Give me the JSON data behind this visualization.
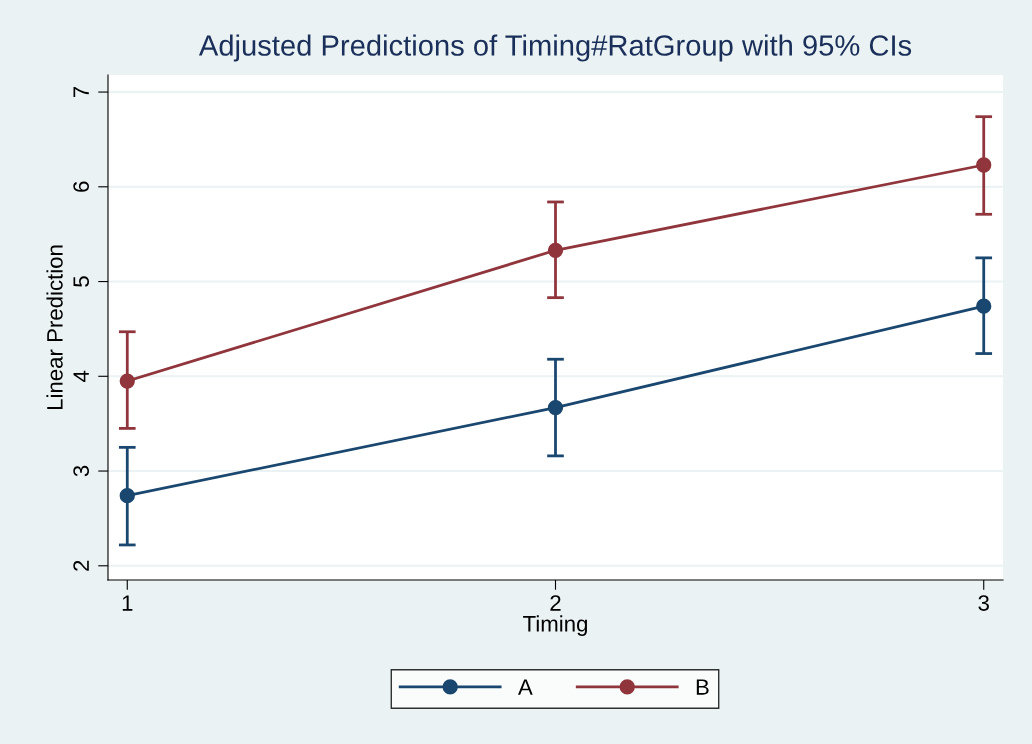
{
  "chart_data": {
    "type": "line",
    "title": "Adjusted Predictions of Timing#RatGroup with 95% CIs",
    "xlabel": "Timing",
    "ylabel": "Linear Prediction",
    "x": [
      1,
      2,
      3
    ],
    "series": [
      {
        "name": "A",
        "color": "#1a476f",
        "values": [
          2.74,
          3.67,
          4.74
        ],
        "errors": [
          [
            2.22,
            3.25
          ],
          [
            3.16,
            4.18
          ],
          [
            4.24,
            5.25
          ]
        ]
      },
      {
        "name": "B",
        "color": "#90353b",
        "values": [
          3.95,
          5.33,
          6.23
        ],
        "errors": [
          [
            3.45,
            4.47
          ],
          [
            4.83,
            5.84
          ],
          [
            5.71,
            6.74
          ]
        ]
      }
    ],
    "xlim": [
      0.955,
      3.045
    ],
    "xticks": [
      1,
      2,
      3
    ],
    "ylim": [
      1.85,
      7.18
    ],
    "yticks": [
      2,
      3,
      4,
      5,
      6,
      7
    ],
    "grid": "y",
    "legend": "bottom",
    "marker": "circle",
    "line_style": "solid"
  }
}
